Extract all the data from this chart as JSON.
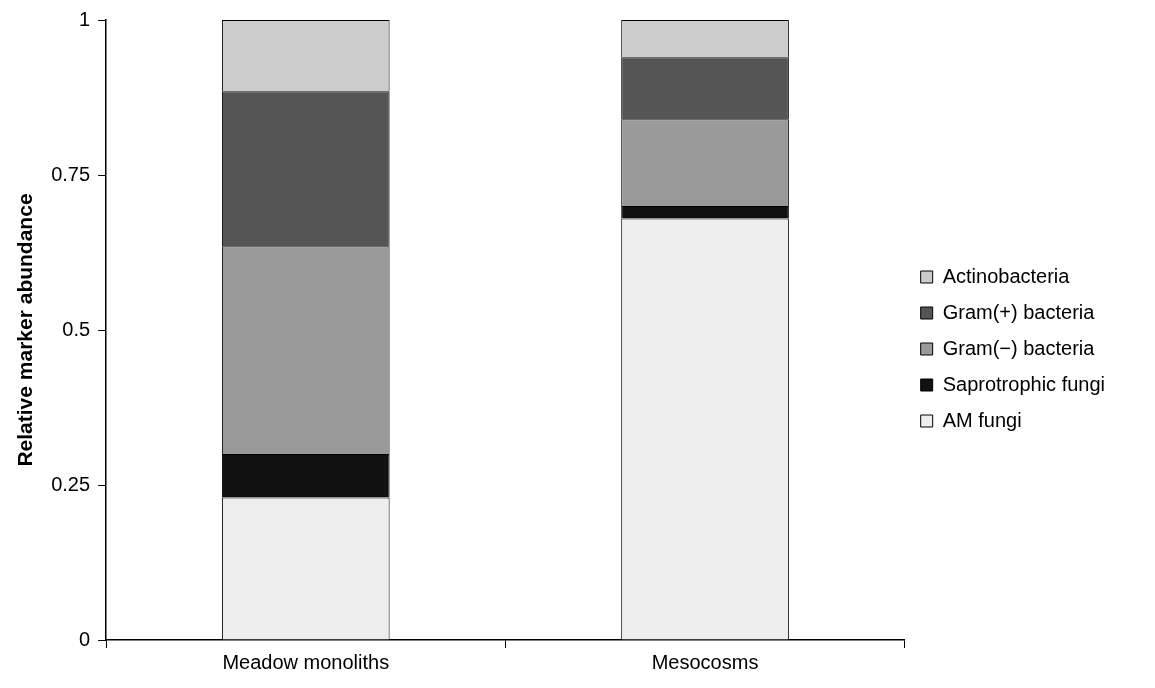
{
  "chart_data": {
    "type": "bar",
    "stacked": true,
    "ylabel": "Relative marker abundance",
    "categories": [
      "Meadow monoliths",
      "Mesocosms"
    ],
    "series": [
      {
        "name": "AM fungi",
        "color": "#eeeeee",
        "values": [
          0.23,
          0.68
        ]
      },
      {
        "name": "Saprotrophic fungi",
        "color": "#111111",
        "values": [
          0.07,
          0.02
        ]
      },
      {
        "name": "Gram(−) bacteria",
        "color": "#9a9a9a",
        "values": [
          0.335,
          0.14
        ]
      },
      {
        "name": "Gram(+) bacteria",
        "color": "#555555",
        "values": [
          0.25,
          0.1
        ]
      },
      {
        "name": "Actinobacteria",
        "color": "#cccccc",
        "values": [
          0.115,
          0.06
        ]
      }
    ],
    "ylim": [
      0,
      1
    ],
    "yticks": [
      0,
      0.25,
      0.5,
      0.75,
      1
    ],
    "grid": false,
    "legend": "right"
  }
}
